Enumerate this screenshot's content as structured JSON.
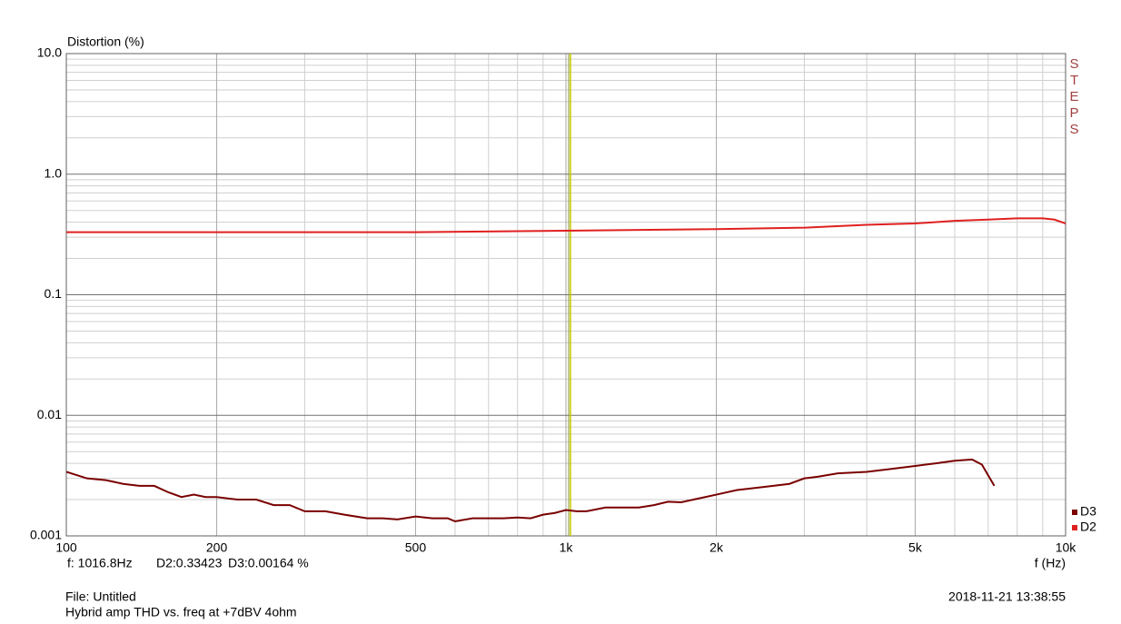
{
  "chart_data": {
    "type": "line",
    "y_label": "Distortion (%)",
    "x_label": "f (Hz)",
    "xlog": true,
    "ylog": true,
    "grid": true,
    "xlim": [
      100,
      10000
    ],
    "ylim": [
      0.001,
      10
    ],
    "xticks": [
      100,
      200,
      500,
      {
        "value": 1000,
        "label": "1k"
      },
      {
        "value": 2000,
        "label": "2k"
      },
      {
        "value": 5000,
        "label": "5k"
      },
      {
        "value": 10000,
        "label": "10k"
      }
    ],
    "yticks": [
      0.001,
      0.01,
      0.1,
      {
        "value": 1,
        "label": "1.0"
      },
      {
        "value": 10,
        "label": "10.0"
      }
    ],
    "xminor": [
      300,
      400,
      600,
      700,
      800,
      900,
      3000,
      4000,
      6000,
      7000,
      8000,
      9000
    ],
    "yminor": [
      0.002,
      0.003,
      0.004,
      0.005,
      0.006,
      0.007,
      0.008,
      0.009,
      0.02,
      0.03,
      0.04,
      0.05,
      0.06,
      0.07,
      0.08,
      0.09,
      0.2,
      0.3,
      0.4,
      0.5,
      0.6,
      0.7,
      0.8,
      0.9,
      2,
      3,
      4,
      5,
      6,
      7,
      8,
      9
    ],
    "cursor": {
      "x": 1016.8,
      "color": "#c8c800"
    },
    "readouts": [
      {
        "value": 1016.8,
        "label": "f: 1016.8Hz"
      },
      {
        "value": 0.33423,
        "label": "D2:0.33423"
      },
      {
        "value": 0.00164,
        "label": "D3:0.00164 %"
      }
    ],
    "side_label": "STEPS",
    "legend_position": "bottom-right",
    "series": [
      {
        "name": "D3",
        "color": "#7a0000",
        "x": [
          100,
          110,
          120,
          130,
          140,
          150,
          160,
          170,
          180,
          190,
          200,
          220,
          240,
          260,
          280,
          300,
          330,
          360,
          400,
          430,
          460,
          500,
          540,
          580,
          600,
          650,
          700,
          750,
          800,
          850,
          900,
          950,
          1000,
          1050,
          1100,
          1200,
          1300,
          1400,
          1500,
          1600,
          1700,
          1800,
          1900,
          2000,
          2200,
          2400,
          2600,
          2800,
          3000,
          3200,
          3500,
          4000,
          4500,
          5000,
          5500,
          6000,
          6500,
          6800,
          7200
        ],
        "values": [
          0.0034,
          0.003,
          0.0029,
          0.0027,
          0.0026,
          0.0026,
          0.0023,
          0.0021,
          0.0022,
          0.0021,
          0.0021,
          0.002,
          0.002,
          0.0018,
          0.0018,
          0.0016,
          0.0016,
          0.0015,
          0.0014,
          0.0014,
          0.00137,
          0.00145,
          0.0014,
          0.0014,
          0.00132,
          0.0014,
          0.0014,
          0.0014,
          0.00142,
          0.0014,
          0.0015,
          0.00155,
          0.00164,
          0.0016,
          0.0016,
          0.00172,
          0.00172,
          0.00172,
          0.0018,
          0.00192,
          0.0019,
          0.002,
          0.0021,
          0.0022,
          0.0024,
          0.0025,
          0.0026,
          0.0027,
          0.003,
          0.0031,
          0.0033,
          0.0034,
          0.0036,
          0.0038,
          0.004,
          0.0042,
          0.0043,
          0.0039,
          0.0026
        ]
      },
      {
        "name": "D2",
        "color": "#e02020",
        "x": [
          100,
          200,
          500,
          1000,
          2000,
          3000,
          4000,
          5000,
          6000,
          7000,
          8000,
          9000,
          9500,
          10000
        ],
        "values": [
          0.33,
          0.33,
          0.33,
          0.34,
          0.35,
          0.36,
          0.38,
          0.39,
          0.41,
          0.42,
          0.43,
          0.43,
          0.42,
          0.39
        ]
      }
    ]
  },
  "footer": {
    "file": "File: Untitled",
    "title": "Hybrid amp THD vs. freq at +7dBV 4ohm",
    "timestamp": "2018-11-21 13:38:55"
  }
}
